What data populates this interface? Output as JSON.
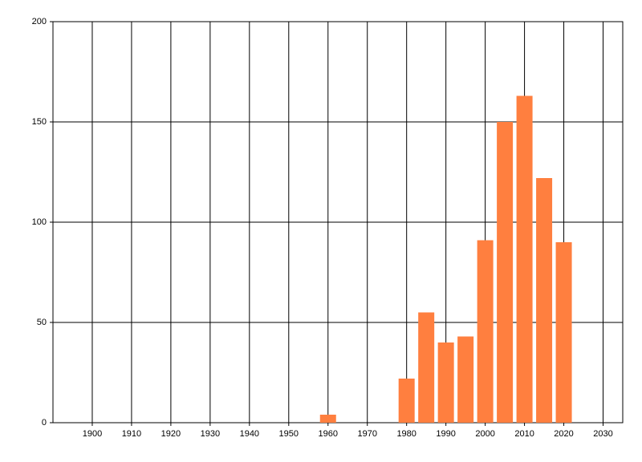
{
  "chart_data": {
    "type": "bar",
    "x": [
      1960,
      1980,
      1985,
      1990,
      1995,
      2000,
      2005,
      2010,
      2015,
      2020
    ],
    "values": [
      4,
      22,
      55,
      40,
      43,
      91,
      150,
      163,
      122,
      90
    ],
    "color": "#ff7f3f",
    "xlim": [
      1890,
      2035
    ],
    "xticks": [
      1900,
      1910,
      1920,
      1930,
      1940,
      1950,
      1960,
      1970,
      1980,
      1990,
      2000,
      2010,
      2020,
      2030
    ],
    "ylim": [
      0,
      200
    ],
    "yticks": [
      0,
      50,
      100,
      150,
      200
    ],
    "grid": true
  }
}
